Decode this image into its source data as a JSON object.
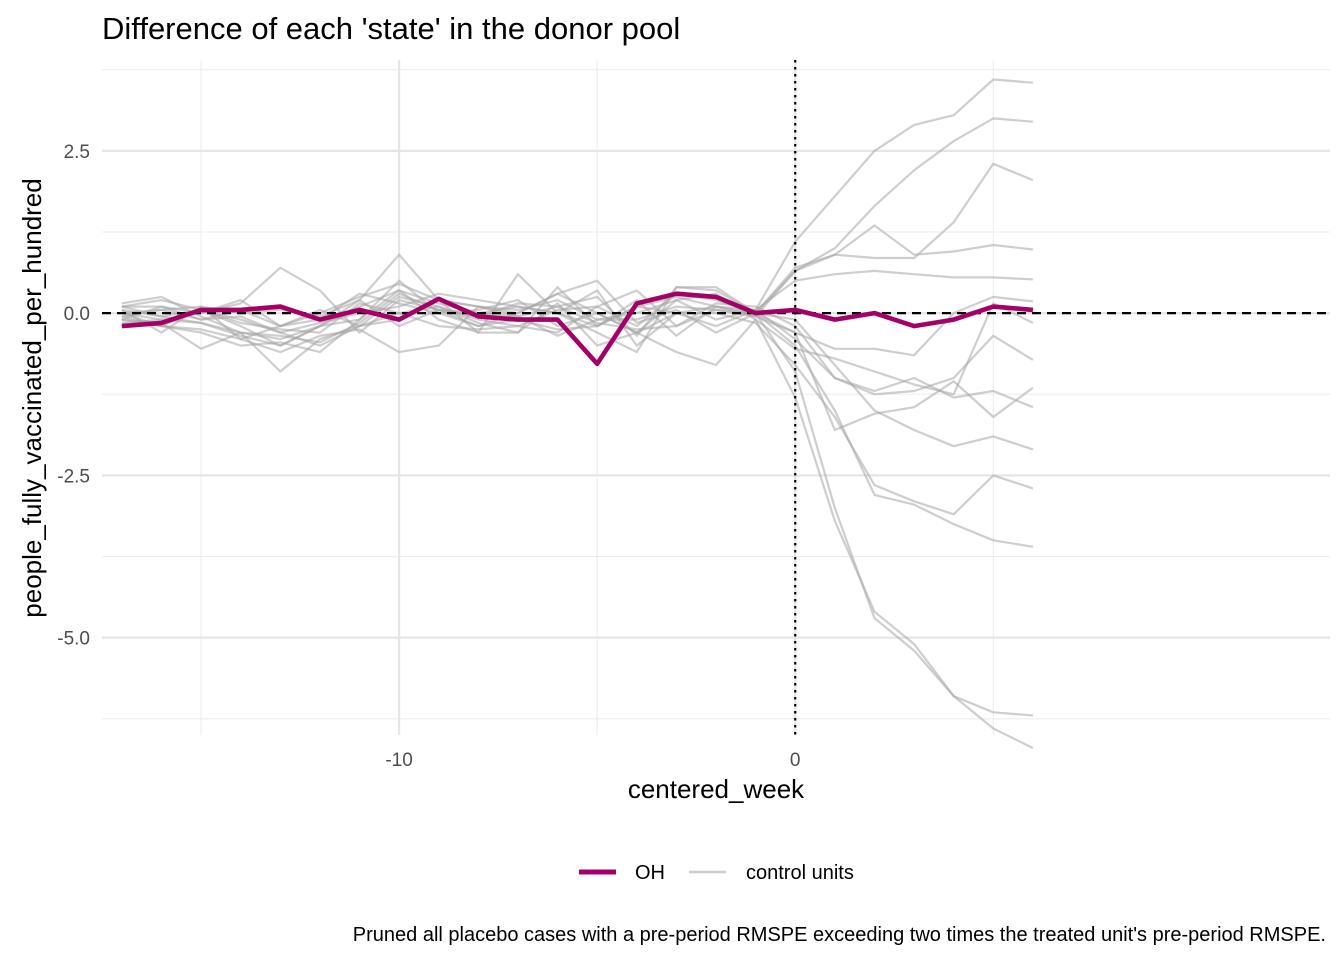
{
  "chart_data": {
    "type": "line",
    "title": "Difference of each 'state' in the donor pool",
    "xlabel": "centered_week",
    "ylabel": "people_fully_vaccinated_per_hundred",
    "caption": "Pruned all placebo cases with a pre-period RMSPE exceeding two times the treated unit's pre-period RMSPE.",
    "xlim": [
      -17.5,
      13.5
    ],
    "ylim": [
      -6.5,
      3.9
    ],
    "x_ticks": [
      -10,
      0
    ],
    "x_tick_labels": [
      "-10",
      "0"
    ],
    "y_ticks": [
      2.5,
      0.0,
      -2.5,
      -5.0
    ],
    "y_tick_labels": [
      "2.5",
      "0.0",
      "-2.5",
      "-5.0"
    ],
    "hline": 0,
    "vline": 0,
    "grid": true,
    "legend": {
      "position": "bottom",
      "entries": [
        "OH",
        "control units"
      ]
    },
    "colors": {
      "treated": "#a50068",
      "control": "#a6a6a6",
      "reference": "#000000"
    },
    "x": [
      -17,
      -16,
      -15,
      -14,
      -13,
      -12,
      -11,
      -10,
      -9,
      -8,
      -7,
      -6,
      -5,
      -4,
      -3,
      -2,
      -1,
      0,
      1,
      2,
      3,
      4,
      5,
      6
    ],
    "series": [
      {
        "name": "OH",
        "role": "treated",
        "values": [
          -0.2,
          -0.15,
          0.05,
          0.05,
          0.1,
          -0.1,
          0.05,
          -0.1,
          0.22,
          -0.05,
          -0.1,
          -0.1,
          -0.78,
          0.15,
          0.3,
          0.25,
          0.0,
          0.05,
          -0.1,
          0.0,
          -0.2,
          -0.1,
          0.1,
          0.05
        ]
      },
      {
        "name": "control units",
        "role": "control",
        "values": [
          0.1,
          0.2,
          0.05,
          -0.1,
          -0.3,
          -0.5,
          -0.2,
          0.25,
          0.1,
          -0.1,
          -0.2,
          -0.3,
          0.1,
          -0.2,
          0.3,
          0.2,
          0.0,
          0.7,
          0.9,
          1.35,
          0.9,
          0.95,
          1.05,
          0.98
        ]
      },
      {
        "name": "control units",
        "role": "control",
        "values": [
          -0.05,
          -0.2,
          -0.3,
          -0.5,
          -0.45,
          -0.6,
          -0.1,
          0.35,
          -0.1,
          -0.3,
          -0.3,
          0.4,
          -0.2,
          0.1,
          0.25,
          0.1,
          0.05,
          1.1,
          1.8,
          2.5,
          2.9,
          3.05,
          3.6,
          3.55
        ]
      },
      {
        "name": "control units",
        "role": "control",
        "values": [
          0.05,
          -0.3,
          0.1,
          -0.4,
          -0.2,
          0.0,
          0.25,
          0.45,
          0.2,
          0.1,
          0.0,
          0.3,
          0.0,
          -0.3,
          0.0,
          0.1,
          -0.05,
          0.65,
          1.0,
          1.65,
          2.2,
          2.65,
          3.0,
          2.95
        ]
      },
      {
        "name": "control units",
        "role": "control",
        "values": [
          -0.1,
          0.1,
          0.0,
          0.15,
          0.7,
          0.35,
          -0.3,
          0.2,
          0.05,
          -0.2,
          0.0,
          0.3,
          0.5,
          -0.15,
          0.05,
          -0.3,
          0.0,
          0.65,
          0.9,
          0.85,
          0.85,
          1.4,
          2.3,
          2.05
        ]
      },
      {
        "name": "control units",
        "role": "control",
        "values": [
          0.0,
          0.05,
          -0.1,
          0.05,
          -0.2,
          -0.1,
          0.3,
          0.15,
          0.0,
          0.05,
          0.2,
          -0.2,
          0.0,
          -0.3,
          0.2,
          -0.1,
          0.05,
          0.5,
          0.6,
          0.65,
          0.6,
          0.55,
          0.55,
          0.52
        ]
      },
      {
        "name": "control units",
        "role": "control",
        "values": [
          0.15,
          0.25,
          -0.05,
          -0.3,
          -0.4,
          -0.2,
          0.2,
          0.9,
          0.2,
          -0.3,
          0.6,
          0.0,
          -0.3,
          -0.6,
          0.4,
          0.4,
          0.0,
          -0.5,
          -1.5,
          -2.8,
          -2.95,
          -3.25,
          -3.5,
          -3.6
        ]
      },
      {
        "name": "control units",
        "role": "control",
        "values": [
          -0.1,
          -0.15,
          -0.55,
          -0.3,
          -0.9,
          -0.4,
          -0.2,
          0.0,
          0.1,
          -0.15,
          -0.3,
          0.15,
          -0.5,
          -0.3,
          -0.6,
          -0.8,
          -0.1,
          -1.3,
          -3.2,
          -4.6,
          -5.1,
          -5.9,
          -6.15,
          -6.2
        ]
      },
      {
        "name": "control units",
        "role": "control",
        "values": [
          0.0,
          -0.2,
          0.05,
          -0.2,
          -0.5,
          -0.2,
          -0.1,
          0.5,
          0.0,
          -0.2,
          -0.1,
          -0.25,
          -0.2,
          0.2,
          -0.35,
          0.1,
          0.0,
          -0.9,
          -3.0,
          -4.7,
          -5.2,
          -5.9,
          -6.4,
          -6.7
        ]
      },
      {
        "name": "control units",
        "role": "control",
        "values": [
          0.05,
          -0.05,
          -0.15,
          -0.35,
          -0.5,
          -0.2,
          0.1,
          0.35,
          0.15,
          0.0,
          0.1,
          0.0,
          -0.2,
          0.1,
          0.0,
          0.0,
          -0.15,
          -0.8,
          -1.6,
          -2.65,
          -2.9,
          -3.1,
          -2.5,
          -2.7
        ]
      },
      {
        "name": "control units",
        "role": "control",
        "values": [
          -0.15,
          -0.1,
          0.0,
          0.2,
          -0.2,
          0.05,
          -0.2,
          -0.1,
          0.2,
          0.1,
          0.05,
          0.2,
          -0.1,
          -0.1,
          0.1,
          0.05,
          -0.05,
          -0.3,
          -0.55,
          -0.55,
          -0.65,
          0.0,
          0.25,
          0.18
        ]
      },
      {
        "name": "control units",
        "role": "control",
        "values": [
          0.1,
          0.1,
          -0.1,
          -0.05,
          -0.3,
          -0.15,
          0.0,
          0.1,
          0.3,
          0.2,
          0.1,
          0.0,
          0.35,
          -0.5,
          0.0,
          -0.2,
          0.05,
          -0.4,
          -1.0,
          -1.25,
          -1.2,
          -1.0,
          -0.35,
          -0.72
        ]
      },
      {
        "name": "control units",
        "role": "control",
        "values": [
          -0.05,
          0.05,
          0.1,
          0.0,
          0.05,
          -0.05,
          0.2,
          -0.2,
          0.05,
          -0.05,
          0.15,
          0.1,
          -0.15,
          -0.25,
          -0.2,
          0.15,
          0.1,
          -0.2,
          -1.0,
          -1.2,
          -1.0,
          -1.3,
          -1.2,
          -1.45
        ]
      },
      {
        "name": "control units",
        "role": "control",
        "values": [
          0.0,
          -0.1,
          -0.15,
          -0.3,
          -0.35,
          -0.45,
          -0.15,
          0.3,
          0.05,
          0.0,
          -0.05,
          -0.35,
          -0.1,
          0.0,
          0.2,
          0.3,
          -0.1,
          -0.55,
          -0.7,
          -0.9,
          -1.1,
          -1.25,
          0.15,
          -0.15
        ]
      },
      {
        "name": "control units",
        "role": "control",
        "values": [
          0.1,
          -0.05,
          0.05,
          -0.15,
          -0.25,
          -0.3,
          0.15,
          0.0,
          -0.2,
          -0.25,
          -0.2,
          0.05,
          0.1,
          0.35,
          -0.2,
          0.05,
          0.0,
          -0.3,
          -1.8,
          -1.55,
          -1.45,
          -1.05,
          -1.6,
          -1.15
        ]
      },
      {
        "name": "control units",
        "role": "control",
        "values": [
          -0.1,
          -0.2,
          -0.25,
          -0.4,
          -0.6,
          -0.35,
          -0.25,
          -0.6,
          -0.5,
          0.1,
          -0.05,
          0.1,
          0.25,
          -0.35,
          0.4,
          0.35,
          0.0,
          -0.1,
          -0.8,
          -1.5,
          -1.8,
          -2.05,
          -1.9,
          -2.1
        ]
      }
    ]
  }
}
